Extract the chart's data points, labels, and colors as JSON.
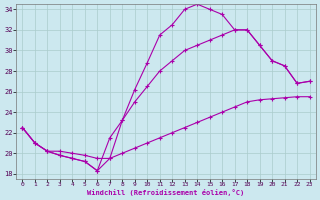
{
  "xlabel": "Windchill (Refroidissement éolien,°C)",
  "bg_color": "#cce8ef",
  "grid_color": "#aacccc",
  "line_color": "#aa00aa",
  "xlim": [
    -0.5,
    23.5
  ],
  "ylim": [
    17.5,
    34.5
  ],
  "xticks": [
    0,
    1,
    2,
    3,
    4,
    5,
    6,
    7,
    8,
    9,
    10,
    11,
    12,
    13,
    14,
    15,
    16,
    17,
    18,
    19,
    20,
    21,
    22,
    23
  ],
  "yticks": [
    18,
    20,
    22,
    24,
    26,
    28,
    30,
    32,
    34
  ],
  "line1_x": [
    0,
    1,
    2,
    3,
    4,
    5,
    6,
    7,
    8,
    9,
    10,
    11,
    12,
    13,
    14,
    15,
    16,
    17,
    18,
    19,
    20,
    21,
    22,
    23
  ],
  "line1_y": [
    22.5,
    21.0,
    20.2,
    19.8,
    19.5,
    19.2,
    18.3,
    19.5,
    23.2,
    26.2,
    28.8,
    31.5,
    32.5,
    34.0,
    34.5,
    34.0,
    33.5,
    32.0,
    32.0,
    30.5,
    29.0,
    28.5,
    26.8,
    27.0
  ],
  "line2_x": [
    0,
    1,
    2,
    3,
    4,
    5,
    6,
    7,
    8,
    9,
    10,
    11,
    12,
    13,
    14,
    15,
    16,
    17,
    18,
    19,
    20,
    21,
    22,
    23
  ],
  "line2_y": [
    22.5,
    21.0,
    20.2,
    19.8,
    19.5,
    19.2,
    18.3,
    21.5,
    23.2,
    25.0,
    26.5,
    28.0,
    29.0,
    30.0,
    30.5,
    31.0,
    31.5,
    32.0,
    32.0,
    30.5,
    29.0,
    28.5,
    26.8,
    27.0
  ],
  "line3_x": [
    0,
    1,
    2,
    3,
    4,
    5,
    6,
    7,
    8,
    9,
    10,
    11,
    12,
    13,
    14,
    15,
    16,
    17,
    18,
    19,
    20,
    21,
    22,
    23
  ],
  "line3_y": [
    22.5,
    21.0,
    20.2,
    20.2,
    20.0,
    19.8,
    19.5,
    19.5,
    20.0,
    20.5,
    21.0,
    21.5,
    22.0,
    22.5,
    23.0,
    23.5,
    24.0,
    24.5,
    25.0,
    25.2,
    25.3,
    25.4,
    25.5,
    25.5
  ]
}
